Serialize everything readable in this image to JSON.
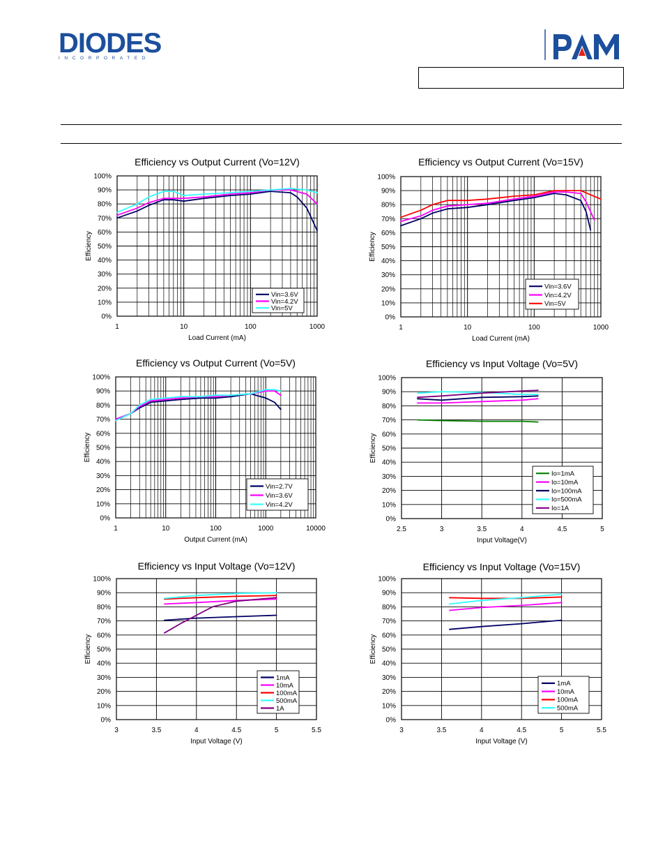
{
  "header": {
    "logo_text": "DIODES",
    "logo_subtext": "INCORPORATED",
    "brand": "PAM",
    "brand_color": "#1c4f9c",
    "brand_accent": "#e2231a",
    "part_number": ""
  },
  "colors": {
    "navy": "#000066",
    "magenta": "#ff00ff",
    "cyan": "#33ffff",
    "red": "#ff0000",
    "green": "#008000",
    "purple": "#800080"
  },
  "chart_data": [
    {
      "type": "line",
      "title": "Efficiency vs Output Current (Vo=12V)",
      "xlabel": "Load Current (mA)",
      "ylabel": "Efficiency",
      "xscale": "log",
      "xlim": [
        1,
        1000
      ],
      "ylim": [
        0,
        100
      ],
      "xticks": [
        "1",
        "10",
        "100",
        "1000"
      ],
      "yticks": [
        "0%",
        "10%",
        "20%",
        "30%",
        "40%",
        "50%",
        "60%",
        "70%",
        "80%",
        "90%",
        "100%"
      ],
      "grid": true,
      "legend": "bottom-right",
      "series": [
        {
          "name": "Vin=3.6V",
          "color": "#000066",
          "x": [
            1,
            2,
            3,
            5,
            7,
            10,
            20,
            50,
            100,
            200,
            400,
            500,
            700,
            1000
          ],
          "y": [
            70,
            75,
            79,
            83,
            83,
            82,
            84,
            86,
            87,
            89,
            88,
            85,
            77,
            61
          ]
        },
        {
          "name": "Vin=4.2V",
          "color": "#ff00ff",
          "x": [
            1,
            2,
            3,
            5,
            7,
            10,
            20,
            50,
            100,
            200,
            400,
            700,
            1000
          ],
          "y": [
            72,
            77,
            81,
            84,
            84,
            84,
            85,
            87,
            88,
            90,
            90,
            87,
            80
          ]
        },
        {
          "name": "Vin=5V",
          "color": "#33ffff",
          "x": [
            1,
            2,
            3,
            5,
            7,
            10,
            20,
            50,
            100,
            200,
            400,
            700,
            1000
          ],
          "y": [
            74,
            80,
            85,
            89,
            89,
            86,
            87,
            88,
            89,
            90,
            91,
            90,
            88
          ]
        }
      ]
    },
    {
      "type": "line",
      "title": "Efficiency vs Output Current (Vo=15V)",
      "xlabel": "Load Current (mA)",
      "ylabel": "Efficiency",
      "xscale": "log",
      "xlim": [
        1,
        1000
      ],
      "ylim": [
        0,
        100
      ],
      "xticks": [
        "1",
        "10",
        "100",
        "1000"
      ],
      "yticks": [
        "0%",
        "10%",
        "20%",
        "30%",
        "40%",
        "50%",
        "60%",
        "70%",
        "80%",
        "90%",
        "100%"
      ],
      "grid": true,
      "legend": "bottom-right",
      "series": [
        {
          "name": "Vin=3.6V",
          "color": "#000066",
          "x": [
            1,
            2,
            3,
            5,
            10,
            20,
            50,
            100,
            200,
            300,
            500,
            600,
            700
          ],
          "y": [
            65,
            70,
            74,
            77,
            78,
            80,
            83,
            85,
            88,
            87,
            83,
            75,
            62
          ]
        },
        {
          "name": "Vin=4.2V",
          "color": "#ff00ff",
          "x": [
            1,
            2,
            3,
            5,
            10,
            20,
            50,
            100,
            200,
            300,
            500,
            600,
            800
          ],
          "y": [
            68,
            72,
            76,
            79,
            80,
            81,
            84,
            86,
            89,
            89,
            88,
            82,
            69
          ]
        },
        {
          "name": "Vin=5V",
          "color": "#ff0000",
          "x": [
            1,
            2,
            3,
            5,
            10,
            20,
            50,
            100,
            200,
            300,
            500,
            700,
            1000
          ],
          "y": [
            71,
            76,
            80,
            83,
            83,
            84,
            86,
            87,
            90,
            90,
            90,
            87,
            84
          ]
        }
      ]
    },
    {
      "type": "line",
      "title": "Efficiency vs Output Current (Vo=5V)",
      "xlabel": "Output Current (mA)",
      "ylabel": "Efficiency",
      "xscale": "log",
      "xlim": [
        1,
        10000
      ],
      "ylim": [
        0,
        100
      ],
      "xticks": [
        "1",
        "10",
        "100",
        "1000",
        "10000"
      ],
      "yticks": [
        "0%",
        "10%",
        "20%",
        "30%",
        "40%",
        "50%",
        "60%",
        "70%",
        "80%",
        "90%",
        "100%"
      ],
      "grid": true,
      "legend": "bottom-right",
      "series": [
        {
          "name": "Vin=2.7V",
          "color": "#000066",
          "x": [
            1,
            2,
            3,
            5,
            10,
            20,
            50,
            100,
            200,
            500,
            1000,
            1500,
            2000
          ],
          "y": [
            70,
            74,
            78,
            82,
            83,
            84,
            85,
            85,
            86,
            88,
            85,
            82,
            77
          ]
        },
        {
          "name": "Vin=3.6V",
          "color": "#ff00ff",
          "x": [
            1,
            2,
            3,
            5,
            10,
            20,
            50,
            100,
            200,
            500,
            1000,
            1500,
            2000
          ],
          "y": [
            70,
            74,
            79,
            83,
            84,
            85,
            86,
            86,
            87,
            88,
            90,
            90,
            87
          ]
        },
        {
          "name": "Vin=4.2V",
          "color": "#33ffff",
          "x": [
            1,
            2,
            3,
            5,
            10,
            20,
            50,
            100,
            200,
            500,
            1000,
            1500,
            2000
          ],
          "y": [
            69,
            74,
            80,
            84,
            85,
            86,
            86,
            87,
            87,
            88,
            91,
            91,
            90
          ]
        }
      ]
    },
    {
      "type": "line",
      "title": "Efficiency vs Input Voltage (Vo=5V)",
      "xlabel": "Input Voltage(V)",
      "ylabel": "Efficiency",
      "xscale": "linear",
      "xlim": [
        2.5,
        5
      ],
      "ylim": [
        0,
        100
      ],
      "xticks": [
        "2.5",
        "3",
        "3.5",
        "4",
        "4.5",
        "5"
      ],
      "yticks": [
        "0%",
        "10%",
        "20%",
        "30%",
        "40%",
        "50%",
        "60%",
        "70%",
        "80%",
        "90%",
        "100%"
      ],
      "grid": true,
      "legend": "bottom-right",
      "series": [
        {
          "name": "Io=1mA",
          "color": "#008000",
          "x": [
            2.7,
            3.0,
            3.5,
            4.0,
            4.2
          ],
          "y": [
            70,
            69.5,
            69,
            69,
            68.5
          ]
        },
        {
          "name": "Io=10mA",
          "color": "#ff00ff",
          "x": [
            2.7,
            3.0,
            3.5,
            4.0,
            4.2
          ],
          "y": [
            82,
            82,
            83,
            84,
            85
          ]
        },
        {
          "name": "Io=100mA",
          "color": "#000066",
          "x": [
            2.7,
            3.0,
            3.5,
            4.0,
            4.2
          ],
          "y": [
            85,
            84,
            86,
            86.5,
            87
          ]
        },
        {
          "name": "Io=500mA",
          "color": "#33ffff",
          "x": [
            2.7,
            3.0,
            3.5,
            4.0,
            4.2
          ],
          "y": [
            89,
            90,
            89.5,
            88,
            88
          ]
        },
        {
          "name": "Io=1A",
          "color": "#800080",
          "x": [
            2.7,
            3.0,
            3.5,
            4.0,
            4.2
          ],
          "y": [
            86,
            87,
            89,
            90.5,
            91
          ]
        }
      ]
    },
    {
      "type": "line",
      "title": "Efficiency vs Input Voltage (Vo=12V)",
      "xlabel": "Input Voltage (V)",
      "ylabel": "Efficiency",
      "xscale": "linear",
      "xlim": [
        3,
        5.5
      ],
      "ylim": [
        0,
        100
      ],
      "xticks": [
        "3",
        "3.5",
        "4",
        "4.5",
        "5",
        "5.5"
      ],
      "yticks": [
        "0%",
        "10%",
        "20%",
        "30%",
        "40%",
        "50%",
        "60%",
        "70%",
        "80%",
        "90%",
        "100%"
      ],
      "grid": true,
      "legend": "bottom-right",
      "series": [
        {
          "name": "1mA",
          "color": "#000066",
          "x": [
            3.6,
            4.0,
            4.5,
            5.0
          ],
          "y": [
            70.5,
            72,
            73,
            74
          ]
        },
        {
          "name": "10mA",
          "color": "#ff00ff",
          "x": [
            3.6,
            4.0,
            4.5,
            5.0
          ],
          "y": [
            82,
            83,
            84.5,
            85.5
          ]
        },
        {
          "name": "100mA",
          "color": "#ff0000",
          "x": [
            3.6,
            4.0,
            4.5,
            5.0
          ],
          "y": [
            85.5,
            86.5,
            87.5,
            88
          ]
        },
        {
          "name": "500mA",
          "color": "#33ffff",
          "x": [
            3.6,
            4.0,
            4.5,
            5.0
          ],
          "y": [
            86,
            88,
            89.5,
            90
          ]
        },
        {
          "name": "1A",
          "color": "#800080",
          "x": [
            3.6,
            3.8,
            4.0,
            4.2,
            4.5,
            5.0
          ],
          "y": [
            61.5,
            68,
            74,
            80,
            84,
            86.5
          ]
        }
      ]
    },
    {
      "type": "line",
      "title": "Efficiency vs Input Voltage (Vo=15V)",
      "xlabel": "Input Voltage (V)",
      "ylabel": "Efficiency",
      "xscale": "linear",
      "xlim": [
        3,
        5.5
      ],
      "ylim": [
        0,
        100
      ],
      "xticks": [
        "3",
        "3.5",
        "4",
        "4.5",
        "5",
        "5.5"
      ],
      "yticks": [
        "0%",
        "10%",
        "20%",
        "30%",
        "40%",
        "50%",
        "60%",
        "70%",
        "80%",
        "90%",
        "100%"
      ],
      "grid": true,
      "legend": "bottom-right",
      "series": [
        {
          "name": "1mA",
          "color": "#000066",
          "x": [
            3.6,
            4.0,
            4.5,
            5.0
          ],
          "y": [
            64,
            66,
            68,
            70.5
          ]
        },
        {
          "name": "10mA",
          "color": "#ff00ff",
          "x": [
            3.6,
            4.0,
            4.5,
            5.0
          ],
          "y": [
            77.5,
            79.5,
            81,
            83
          ]
        },
        {
          "name": "100mA",
          "color": "#ff0000",
          "x": [
            3.6,
            4.0,
            4.5,
            5.0
          ],
          "y": [
            86.5,
            86,
            86,
            87
          ]
        },
        {
          "name": "500mA",
          "color": "#33ffff",
          "x": [
            3.6,
            4.0,
            4.5,
            5.0
          ],
          "y": [
            82,
            84.5,
            86.5,
            89
          ]
        }
      ]
    }
  ]
}
